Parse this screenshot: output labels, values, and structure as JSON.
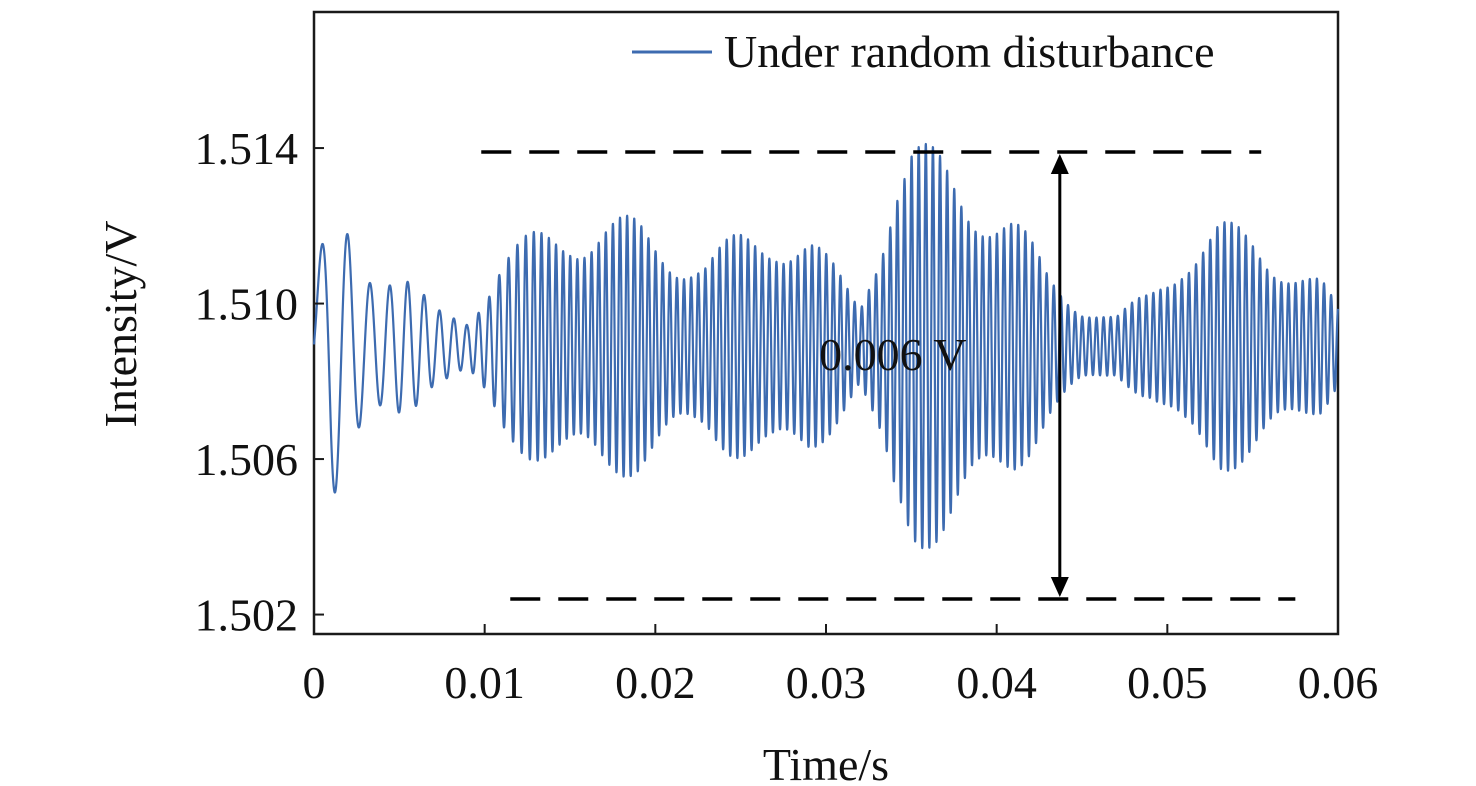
{
  "chart_data": {
    "type": "line",
    "title": "",
    "xlabel": "Time/s",
    "ylabel": "Intensity/V",
    "xlim": [
      0,
      0.06
    ],
    "ylim": [
      1.5015,
      1.5175
    ],
    "xticks": [
      0,
      0.01,
      0.02,
      0.03,
      0.04,
      0.05,
      0.06
    ],
    "xtick_labels": [
      "0",
      "0.01",
      "0.02",
      "0.03",
      "0.04",
      "0.05",
      "0.06"
    ],
    "yticks": [
      1.502,
      1.506,
      1.51,
      1.514
    ],
    "ytick_labels": [
      "1.502",
      "1.506",
      "1.510",
      "1.514"
    ],
    "grid": false,
    "legend_position": "top-right",
    "series": [
      {
        "name": "Under random disturbance",
        "color": "#3d6bb0",
        "center": 1.5089,
        "envelope_t": [
          0,
          0.001,
          0.003,
          0.005,
          0.007,
          0.009,
          0.011,
          0.013,
          0.015,
          0.017,
          0.019,
          0.021,
          0.023,
          0.025,
          0.027,
          0.029,
          0.031,
          0.032,
          0.033,
          0.034,
          0.035,
          0.036,
          0.037,
          0.039,
          0.041,
          0.043,
          0.045,
          0.047,
          0.049,
          0.051,
          0.053,
          0.055,
          0.057,
          0.059,
          0.06
        ],
        "envelope_amp": [
          0.0015,
          0.004,
          0.0025,
          0.0022,
          0.001,
          0.0008,
          0.0025,
          0.003,
          0.0035,
          0.0035,
          0.0033,
          0.0028,
          0.0024,
          0.003,
          0.0034,
          0.003,
          0.0018,
          0.0012,
          0.003,
          0.005,
          0.0055,
          0.0052,
          0.005,
          0.0045,
          0.0035,
          0.002,
          0.0012,
          0.0008,
          0.0015,
          0.0028,
          0.0033,
          0.003,
          0.0025,
          0.0018,
          0.001
        ],
        "frequency_hz": [
          {
            "t": 0.0,
            "f": 550
          },
          {
            "t": 0.008,
            "f": 1200
          },
          {
            "t": 0.014,
            "f": 2400
          },
          {
            "t": 0.06,
            "f": 2400
          }
        ]
      }
    ],
    "reference_lines": [
      {
        "y": 1.5139,
        "x": [
          0.0098,
          0.0555
        ],
        "style": "dashed",
        "color": "#000000"
      },
      {
        "y": 1.5024,
        "x": [
          0.0115,
          0.0575
        ],
        "style": "dashed",
        "color": "#000000"
      }
    ],
    "annotations": [
      {
        "text": "0.006 V",
        "x": 0.0296,
        "y": 1.5087
      },
      {
        "type": "double-arrow",
        "x": 0.0437,
        "y_from": 1.5024,
        "y_to": 1.5139
      }
    ]
  }
}
